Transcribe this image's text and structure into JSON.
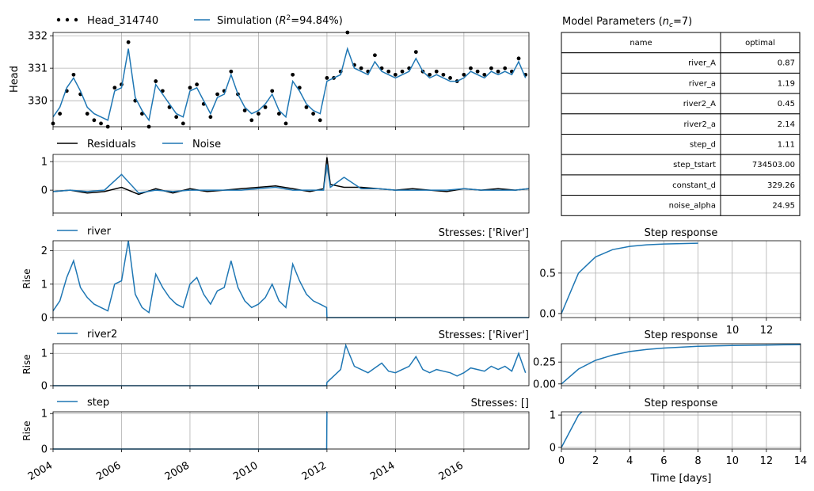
{
  "colors": {
    "sim": "#1f77b4",
    "obs": "#000000",
    "grid": "#b0b0b0"
  },
  "head": {
    "ylabel": "Head",
    "legend_obs": "Head_314740",
    "legend_sim_prefix": "Simulation (",
    "legend_sim_r2": "R",
    "legend_sim_sup": "2",
    "legend_sim_suffix": "=94.84%)",
    "yticks": [
      "330",
      "331",
      "332"
    ]
  },
  "residuals": {
    "legend_res": "Residuals",
    "legend_noise": "Noise",
    "yticks": [
      "0",
      "1"
    ]
  },
  "river": {
    "legend": "river",
    "stresses": "Stresses: ['River']",
    "ylabel": "Rise",
    "yticks": [
      "0",
      "1",
      "2"
    ],
    "step_title": "Step response",
    "step_yticks": [
      "0.0",
      "0.5"
    ]
  },
  "river2": {
    "legend": "river2",
    "stresses": "Stresses: ['River']",
    "ylabel": "Rise",
    "yticks": [
      "0",
      "1"
    ],
    "step_title": "Step response",
    "step_yticks": [
      "0.00",
      "0.25"
    ],
    "step_xticks": [
      "10",
      "12"
    ]
  },
  "step": {
    "legend": "step",
    "stresses": "Stresses: []",
    "ylabel": "Rise",
    "yticks": [
      "0",
      "1"
    ],
    "step_title": "Step response",
    "step_yticks": [
      "0",
      "1"
    ]
  },
  "x_axis": {
    "ticks": [
      "2004",
      "2006",
      "2008",
      "2010",
      "2012",
      "2014",
      "2016"
    ]
  },
  "step_x_axis": {
    "ticks": [
      "0",
      "2",
      "4",
      "6",
      "8",
      "10",
      "12",
      "14"
    ],
    "label": "Time [days]"
  },
  "params_table": {
    "title_prefix": "Model Parameters (",
    "title_n": "n",
    "title_sub": "c",
    "title_suffix": "=7)",
    "col_name": "name",
    "col_optimal": "optimal",
    "rows": [
      {
        "name": "river_A",
        "optimal": "0.87"
      },
      {
        "name": "river_a",
        "optimal": "1.19"
      },
      {
        "name": "river2_A",
        "optimal": "0.45"
      },
      {
        "name": "river2_a",
        "optimal": "2.14"
      },
      {
        "name": "step_d",
        "optimal": "1.11"
      },
      {
        "name": "step_tstart",
        "optimal": "734503.00"
      },
      {
        "name": "constant_d",
        "optimal": "329.26"
      },
      {
        "name": "noise_alpha",
        "optimal": "24.95"
      }
    ]
  },
  "chart_data": [
    {
      "type": "line",
      "panel": "head",
      "ylabel": "Head",
      "xlim": [
        2004.0,
        2017.9
      ],
      "ylim": [
        329.2,
        332.1
      ],
      "series": [
        {
          "name": "Head_314740",
          "style": "markers",
          "x": [
            2004.0,
            2004.2,
            2004.4,
            2004.6,
            2004.8,
            2005.0,
            2005.2,
            2005.4,
            2005.6,
            2005.8,
            2006.0,
            2006.2,
            2006.4,
            2006.6,
            2006.8,
            2007.0,
            2007.2,
            2007.4,
            2007.6,
            2007.8,
            2008.0,
            2008.2,
            2008.4,
            2008.6,
            2008.8,
            2009.0,
            2009.2,
            2009.4,
            2009.6,
            2009.8,
            2010.0,
            2010.2,
            2010.4,
            2010.6,
            2010.8,
            2011.0,
            2011.2,
            2011.4,
            2011.6,
            2011.8,
            2012.0,
            2012.2,
            2012.4,
            2012.6,
            2012.8,
            2013.0,
            2013.2,
            2013.4,
            2013.6,
            2013.8,
            2014.0,
            2014.2,
            2014.4,
            2014.6,
            2014.8,
            2015.0,
            2015.2,
            2015.4,
            2015.6,
            2015.8,
            2016.0,
            2016.2,
            2016.4,
            2016.6,
            2016.8,
            2017.0,
            2017.2,
            2017.4,
            2017.6,
            2017.8
          ],
          "values": [
            329.3,
            329.6,
            330.3,
            330.8,
            330.2,
            329.6,
            329.4,
            329.3,
            329.2,
            330.4,
            330.5,
            331.8,
            330.0,
            329.6,
            329.2,
            330.6,
            330.3,
            329.8,
            329.5,
            329.3,
            330.4,
            330.5,
            329.9,
            329.5,
            330.2,
            330.3,
            330.9,
            330.2,
            329.7,
            329.4,
            329.6,
            329.8,
            330.3,
            329.6,
            329.3,
            330.8,
            330.4,
            329.8,
            329.6,
            329.4,
            330.7,
            330.7,
            330.9,
            332.2,
            331.1,
            331.0,
            330.9,
            331.4,
            331.0,
            330.9,
            330.8,
            330.9,
            331.0,
            331.5,
            330.9,
            330.8,
            330.9,
            330.8,
            330.7,
            330.6,
            330.8,
            331.0,
            330.9,
            330.8,
            331.0,
            330.9,
            331.0,
            330.9,
            331.3,
            330.8
          ]
        },
        {
          "name": "Simulation",
          "x": [
            2004.0,
            2004.2,
            2004.4,
            2004.6,
            2004.8,
            2005.0,
            2005.2,
            2005.4,
            2005.6,
            2005.8,
            2006.0,
            2006.2,
            2006.4,
            2006.6,
            2006.8,
            2007.0,
            2007.2,
            2007.4,
            2007.6,
            2007.8,
            2008.0,
            2008.2,
            2008.4,
            2008.6,
            2008.8,
            2009.0,
            2009.2,
            2009.4,
            2009.6,
            2009.8,
            2010.0,
            2010.2,
            2010.4,
            2010.6,
            2010.8,
            2011.0,
            2011.2,
            2011.4,
            2011.6,
            2011.8,
            2012.0,
            2012.2,
            2012.4,
            2012.6,
            2012.8,
            2013.0,
            2013.2,
            2013.4,
            2013.6,
            2013.8,
            2014.0,
            2014.2,
            2014.4,
            2014.6,
            2014.8,
            2015.0,
            2015.2,
            2015.4,
            2015.6,
            2015.8,
            2016.0,
            2016.2,
            2016.4,
            2016.6,
            2016.8,
            2017.0,
            2017.2,
            2017.4,
            2017.6,
            2017.8
          ],
          "values": [
            329.5,
            329.8,
            330.4,
            330.7,
            330.3,
            329.8,
            329.6,
            329.5,
            329.4,
            330.3,
            330.4,
            331.6,
            330.1,
            329.7,
            329.4,
            330.5,
            330.2,
            329.9,
            329.6,
            329.5,
            330.3,
            330.4,
            330.0,
            329.6,
            330.1,
            330.2,
            330.8,
            330.2,
            329.8,
            329.6,
            329.7,
            329.9,
            330.2,
            329.7,
            329.5,
            330.6,
            330.3,
            329.9,
            329.7,
            329.6,
            330.6,
            330.7,
            330.8,
            331.6,
            331.0,
            330.9,
            330.8,
            331.2,
            330.9,
            330.8,
            330.7,
            330.8,
            330.9,
            331.3,
            330.9,
            330.7,
            330.8,
            330.7,
            330.6,
            330.6,
            330.7,
            330.9,
            330.8,
            330.7,
            330.9,
            330.8,
            330.9,
            330.8,
            331.2,
            330.7
          ]
        }
      ]
    },
    {
      "type": "line",
      "panel": "residuals",
      "xlim": [
        2004.0,
        2017.9
      ],
      "ylim": [
        -0.8,
        1.25
      ],
      "series": [
        {
          "name": "Residuals",
          "x": [
            2004.0,
            2004.5,
            2005.0,
            2005.5,
            2006.0,
            2006.5,
            2007.0,
            2007.5,
            2008.0,
            2008.5,
            2009.0,
            2009.5,
            2010.0,
            2010.5,
            2011.0,
            2011.5,
            2011.9,
            2012.0,
            2012.1,
            2012.5,
            2013.0,
            2013.5,
            2014.0,
            2014.5,
            2015.0,
            2015.5,
            2016.0,
            2016.5,
            2017.0,
            2017.5,
            2017.9
          ],
          "values": [
            -0.05,
            0.0,
            -0.1,
            -0.05,
            0.1,
            -0.15,
            0.05,
            -0.1,
            0.05,
            -0.05,
            0.0,
            0.05,
            0.1,
            0.15,
            0.05,
            -0.05,
            0.05,
            1.15,
            0.2,
            0.1,
            0.1,
            0.05,
            0.0,
            0.05,
            0.0,
            -0.05,
            0.05,
            0.0,
            0.05,
            0.0,
            0.05
          ]
        },
        {
          "name": "Noise",
          "x": [
            2004.0,
            2004.5,
            2005.0,
            2005.5,
            2006.0,
            2006.5,
            2007.0,
            2007.5,
            2008.0,
            2008.5,
            2009.0,
            2009.5,
            2010.0,
            2010.5,
            2011.0,
            2011.5,
            2011.9,
            2012.0,
            2012.1,
            2012.5,
            2013.0,
            2013.5,
            2014.0,
            2014.5,
            2015.0,
            2015.5,
            2016.0,
            2016.5,
            2017.0,
            2017.5,
            2017.9
          ],
          "values": [
            -0.05,
            0.0,
            -0.05,
            0.0,
            0.55,
            -0.1,
            0.0,
            -0.05,
            0.0,
            0.0,
            0.0,
            0.0,
            0.05,
            0.1,
            0.0,
            0.0,
            0.0,
            0.9,
            0.1,
            0.45,
            0.05,
            0.05,
            0.0,
            0.0,
            0.0,
            0.0,
            0.05,
            0.0,
            0.0,
            0.0,
            0.05
          ]
        }
      ]
    },
    {
      "type": "line",
      "panel": "river",
      "ylabel": "Rise",
      "xlim": [
        2004.0,
        2017.9
      ],
      "ylim": [
        0,
        2.3
      ],
      "series": [
        {
          "name": "river",
          "x": [
            2004.0,
            2004.2,
            2004.4,
            2004.6,
            2004.8,
            2005.0,
            2005.2,
            2005.4,
            2005.6,
            2005.8,
            2006.0,
            2006.2,
            2006.4,
            2006.6,
            2006.8,
            2007.0,
            2007.2,
            2007.4,
            2007.6,
            2007.8,
            2008.0,
            2008.2,
            2008.4,
            2008.6,
            2008.8,
            2009.0,
            2009.2,
            2009.4,
            2009.6,
            2009.8,
            2010.0,
            2010.2,
            2010.4,
            2010.6,
            2010.8,
            2011.0,
            2011.2,
            2011.4,
            2011.6,
            2011.8,
            2011.99,
            2012.0,
            2014.0,
            2016.0,
            2017.9
          ],
          "values": [
            0.2,
            0.5,
            1.2,
            1.7,
            0.9,
            0.6,
            0.4,
            0.3,
            0.2,
            1.0,
            1.1,
            2.3,
            0.7,
            0.3,
            0.15,
            1.3,
            0.9,
            0.6,
            0.4,
            0.3,
            1.0,
            1.2,
            0.7,
            0.4,
            0.8,
            0.9,
            1.7,
            0.9,
            0.5,
            0.3,
            0.4,
            0.6,
            1.0,
            0.5,
            0.3,
            1.6,
            1.1,
            0.7,
            0.5,
            0.4,
            0.3,
            0.0,
            0.0,
            0.0,
            0.0
          ]
        }
      ]
    },
    {
      "type": "line",
      "panel": "river2",
      "ylabel": "Rise",
      "xlim": [
        2004.0,
        2017.9
      ],
      "ylim": [
        0,
        1.3
      ],
      "series": [
        {
          "name": "river2",
          "x": [
            2004.0,
            2008.0,
            2011.99,
            2012.0,
            2012.2,
            2012.4,
            2012.55,
            2012.8,
            2013.0,
            2013.2,
            2013.4,
            2013.6,
            2013.8,
            2014.0,
            2014.2,
            2014.4,
            2014.6,
            2014.8,
            2015.0,
            2015.2,
            2015.4,
            2015.6,
            2015.8,
            2016.0,
            2016.2,
            2016.4,
            2016.6,
            2016.8,
            2017.0,
            2017.2,
            2017.4,
            2017.6,
            2017.8
          ],
          "values": [
            0.0,
            0.0,
            0.0,
            0.1,
            0.3,
            0.5,
            1.25,
            0.6,
            0.5,
            0.4,
            0.55,
            0.7,
            0.45,
            0.4,
            0.5,
            0.6,
            0.9,
            0.5,
            0.4,
            0.5,
            0.45,
            0.4,
            0.3,
            0.4,
            0.55,
            0.5,
            0.45,
            0.6,
            0.5,
            0.6,
            0.45,
            1.0,
            0.4
          ]
        }
      ]
    },
    {
      "type": "line",
      "panel": "step",
      "ylabel": "Rise",
      "xlim": [
        2004.0,
        2017.9
      ],
      "ylim": [
        0,
        1.05
      ],
      "series": [
        {
          "name": "step",
          "x": [
            2004.0,
            2011.99,
            2012.0,
            2012.005
          ],
          "values": [
            0.0,
            0.0,
            1.1,
            1.1
          ]
        }
      ]
    },
    {
      "type": "line",
      "panel": "river-step-response",
      "title": "Step response",
      "xlim": [
        0,
        14
      ],
      "ylim": [
        -0.05,
        0.9
      ],
      "series": [
        {
          "name": "river",
          "x": [
            0,
            1,
            2,
            3,
            4,
            5,
            6,
            7,
            8
          ],
          "values": [
            0.0,
            0.5,
            0.7,
            0.79,
            0.83,
            0.85,
            0.86,
            0.865,
            0.87
          ]
        }
      ]
    },
    {
      "type": "line",
      "panel": "river2-step-response",
      "title": "Step response",
      "xlim": [
        0,
        14
      ],
      "ylim": [
        -0.02,
        0.46
      ],
      "series": [
        {
          "name": "river2",
          "x": [
            0,
            1,
            2,
            3,
            4,
            5,
            6,
            7,
            8,
            9,
            10,
            11,
            12,
            13,
            14
          ],
          "values": [
            0.0,
            0.17,
            0.27,
            0.33,
            0.37,
            0.395,
            0.41,
            0.42,
            0.43,
            0.435,
            0.44,
            0.442,
            0.445,
            0.447,
            0.448
          ]
        }
      ]
    },
    {
      "type": "line",
      "panel": "step-step-response",
      "title": "Step response",
      "xlim": [
        0,
        14
      ],
      "ylim": [
        -0.05,
        1.1
      ],
      "series": [
        {
          "name": "step",
          "x": [
            0,
            1,
            1.2
          ],
          "values": [
            0.0,
            1.0,
            1.2
          ]
        }
      ]
    },
    {
      "type": "table",
      "title": "Model Parameters (nc=7)",
      "columns": [
        "name",
        "optimal"
      ],
      "rows": [
        [
          "river_A",
          "0.87"
        ],
        [
          "river_a",
          "1.19"
        ],
        [
          "river2_A",
          "0.45"
        ],
        [
          "river2_a",
          "2.14"
        ],
        [
          "step_d",
          "1.11"
        ],
        [
          "step_tstart",
          "734503.00"
        ],
        [
          "constant_d",
          "329.26"
        ],
        [
          "noise_alpha",
          "24.95"
        ]
      ]
    }
  ]
}
